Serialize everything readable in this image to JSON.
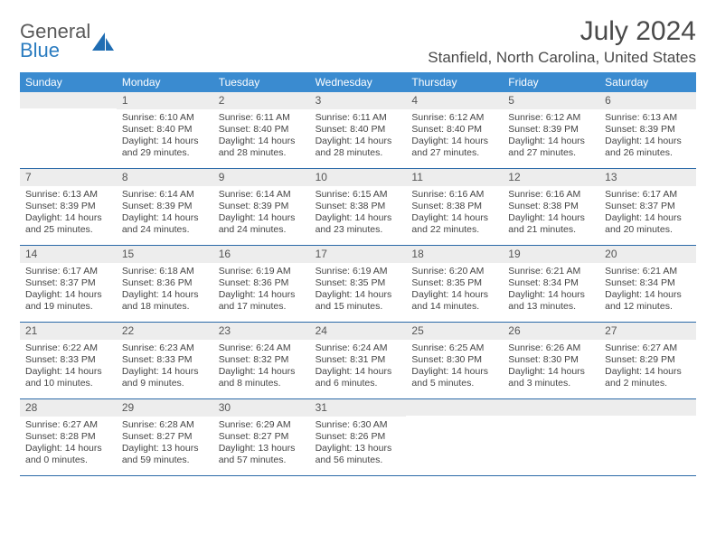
{
  "brand": {
    "part1": "General",
    "part2": "Blue"
  },
  "title": "July 2024",
  "location": "Stanfield, North Carolina, United States",
  "colors": {
    "header_bg": "#3a8bd0",
    "header_text": "#ffffff",
    "daynum_bg": "#ededed",
    "border": "#2b6aa8",
    "body_text": "#444444",
    "logo_gray": "#5a5a5a",
    "logo_blue": "#2b7cc0"
  },
  "day_labels": [
    "Sunday",
    "Monday",
    "Tuesday",
    "Wednesday",
    "Thursday",
    "Friday",
    "Saturday"
  ],
  "weeks": [
    [
      {
        "num": "",
        "sunrise": "",
        "sunset": "",
        "daylight": ""
      },
      {
        "num": "1",
        "sunrise": "Sunrise: 6:10 AM",
        "sunset": "Sunset: 8:40 PM",
        "daylight": "Daylight: 14 hours and 29 minutes."
      },
      {
        "num": "2",
        "sunrise": "Sunrise: 6:11 AM",
        "sunset": "Sunset: 8:40 PM",
        "daylight": "Daylight: 14 hours and 28 minutes."
      },
      {
        "num": "3",
        "sunrise": "Sunrise: 6:11 AM",
        "sunset": "Sunset: 8:40 PM",
        "daylight": "Daylight: 14 hours and 28 minutes."
      },
      {
        "num": "4",
        "sunrise": "Sunrise: 6:12 AM",
        "sunset": "Sunset: 8:40 PM",
        "daylight": "Daylight: 14 hours and 27 minutes."
      },
      {
        "num": "5",
        "sunrise": "Sunrise: 6:12 AM",
        "sunset": "Sunset: 8:39 PM",
        "daylight": "Daylight: 14 hours and 27 minutes."
      },
      {
        "num": "6",
        "sunrise": "Sunrise: 6:13 AM",
        "sunset": "Sunset: 8:39 PM",
        "daylight": "Daylight: 14 hours and 26 minutes."
      }
    ],
    [
      {
        "num": "7",
        "sunrise": "Sunrise: 6:13 AM",
        "sunset": "Sunset: 8:39 PM",
        "daylight": "Daylight: 14 hours and 25 minutes."
      },
      {
        "num": "8",
        "sunrise": "Sunrise: 6:14 AM",
        "sunset": "Sunset: 8:39 PM",
        "daylight": "Daylight: 14 hours and 24 minutes."
      },
      {
        "num": "9",
        "sunrise": "Sunrise: 6:14 AM",
        "sunset": "Sunset: 8:39 PM",
        "daylight": "Daylight: 14 hours and 24 minutes."
      },
      {
        "num": "10",
        "sunrise": "Sunrise: 6:15 AM",
        "sunset": "Sunset: 8:38 PM",
        "daylight": "Daylight: 14 hours and 23 minutes."
      },
      {
        "num": "11",
        "sunrise": "Sunrise: 6:16 AM",
        "sunset": "Sunset: 8:38 PM",
        "daylight": "Daylight: 14 hours and 22 minutes."
      },
      {
        "num": "12",
        "sunrise": "Sunrise: 6:16 AM",
        "sunset": "Sunset: 8:38 PM",
        "daylight": "Daylight: 14 hours and 21 minutes."
      },
      {
        "num": "13",
        "sunrise": "Sunrise: 6:17 AM",
        "sunset": "Sunset: 8:37 PM",
        "daylight": "Daylight: 14 hours and 20 minutes."
      }
    ],
    [
      {
        "num": "14",
        "sunrise": "Sunrise: 6:17 AM",
        "sunset": "Sunset: 8:37 PM",
        "daylight": "Daylight: 14 hours and 19 minutes."
      },
      {
        "num": "15",
        "sunrise": "Sunrise: 6:18 AM",
        "sunset": "Sunset: 8:36 PM",
        "daylight": "Daylight: 14 hours and 18 minutes."
      },
      {
        "num": "16",
        "sunrise": "Sunrise: 6:19 AM",
        "sunset": "Sunset: 8:36 PM",
        "daylight": "Daylight: 14 hours and 17 minutes."
      },
      {
        "num": "17",
        "sunrise": "Sunrise: 6:19 AM",
        "sunset": "Sunset: 8:35 PM",
        "daylight": "Daylight: 14 hours and 15 minutes."
      },
      {
        "num": "18",
        "sunrise": "Sunrise: 6:20 AM",
        "sunset": "Sunset: 8:35 PM",
        "daylight": "Daylight: 14 hours and 14 minutes."
      },
      {
        "num": "19",
        "sunrise": "Sunrise: 6:21 AM",
        "sunset": "Sunset: 8:34 PM",
        "daylight": "Daylight: 14 hours and 13 minutes."
      },
      {
        "num": "20",
        "sunrise": "Sunrise: 6:21 AM",
        "sunset": "Sunset: 8:34 PM",
        "daylight": "Daylight: 14 hours and 12 minutes."
      }
    ],
    [
      {
        "num": "21",
        "sunrise": "Sunrise: 6:22 AM",
        "sunset": "Sunset: 8:33 PM",
        "daylight": "Daylight: 14 hours and 10 minutes."
      },
      {
        "num": "22",
        "sunrise": "Sunrise: 6:23 AM",
        "sunset": "Sunset: 8:33 PM",
        "daylight": "Daylight: 14 hours and 9 minutes."
      },
      {
        "num": "23",
        "sunrise": "Sunrise: 6:24 AM",
        "sunset": "Sunset: 8:32 PM",
        "daylight": "Daylight: 14 hours and 8 minutes."
      },
      {
        "num": "24",
        "sunrise": "Sunrise: 6:24 AM",
        "sunset": "Sunset: 8:31 PM",
        "daylight": "Daylight: 14 hours and 6 minutes."
      },
      {
        "num": "25",
        "sunrise": "Sunrise: 6:25 AM",
        "sunset": "Sunset: 8:30 PM",
        "daylight": "Daylight: 14 hours and 5 minutes."
      },
      {
        "num": "26",
        "sunrise": "Sunrise: 6:26 AM",
        "sunset": "Sunset: 8:30 PM",
        "daylight": "Daylight: 14 hours and 3 minutes."
      },
      {
        "num": "27",
        "sunrise": "Sunrise: 6:27 AM",
        "sunset": "Sunset: 8:29 PM",
        "daylight": "Daylight: 14 hours and 2 minutes."
      }
    ],
    [
      {
        "num": "28",
        "sunrise": "Sunrise: 6:27 AM",
        "sunset": "Sunset: 8:28 PM",
        "daylight": "Daylight: 14 hours and 0 minutes."
      },
      {
        "num": "29",
        "sunrise": "Sunrise: 6:28 AM",
        "sunset": "Sunset: 8:27 PM",
        "daylight": "Daylight: 13 hours and 59 minutes."
      },
      {
        "num": "30",
        "sunrise": "Sunrise: 6:29 AM",
        "sunset": "Sunset: 8:27 PM",
        "daylight": "Daylight: 13 hours and 57 minutes."
      },
      {
        "num": "31",
        "sunrise": "Sunrise: 6:30 AM",
        "sunset": "Sunset: 8:26 PM",
        "daylight": "Daylight: 13 hours and 56 minutes."
      },
      {
        "num": "",
        "sunrise": "",
        "sunset": "",
        "daylight": ""
      },
      {
        "num": "",
        "sunrise": "",
        "sunset": "",
        "daylight": ""
      },
      {
        "num": "",
        "sunrise": "",
        "sunset": "",
        "daylight": ""
      }
    ]
  ]
}
